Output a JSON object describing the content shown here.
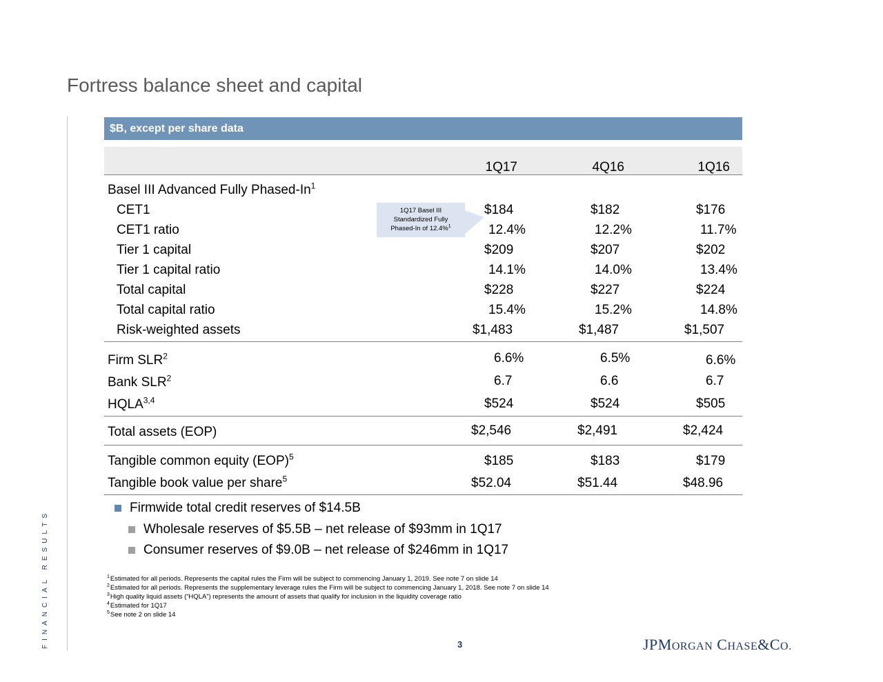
{
  "title": "Fortress balance sheet and capital",
  "side_label": "FINANCIAL RESULTS",
  "units": "$B, except per share data",
  "columns": [
    "1Q17",
    "4Q16",
    "1Q16"
  ],
  "section_basel": {
    "label": "Basel III Advanced Fully Phased-In",
    "sup": "1"
  },
  "callout": {
    "line1": "1Q17 Basel III",
    "line2": "Standardized Fully",
    "line3": "Phased-In of 12.4%",
    "sup": "1"
  },
  "rows": [
    {
      "label": "CET1",
      "v": [
        "$184",
        "$182",
        "$176"
      ]
    },
    {
      "label": "CET1 ratio",
      "v": [
        "12.4%",
        "12.2%",
        "11.7%"
      ]
    },
    {
      "label": "Tier 1 capital",
      "v": [
        "$209",
        "$207",
        "$202"
      ]
    },
    {
      "label": "Tier 1 capital ratio",
      "v": [
        "14.1%",
        "14.0%",
        "13.4%"
      ]
    },
    {
      "label": "Total capital",
      "v": [
        "$228",
        "$227",
        "$224"
      ]
    },
    {
      "label": "Total capital ratio",
      "v": [
        "15.4%",
        "15.2%",
        "14.8%"
      ]
    },
    {
      "label": "Risk-weighted assets",
      "v": [
        "$1,483",
        "$1,487",
        "$1,507"
      ]
    },
    {
      "label": "Firm SLR",
      "sup": "2",
      "v": [
        "6.6%",
        "6.5%",
        "6.6%"
      ]
    },
    {
      "label": "Bank SLR",
      "sup": "2",
      "v": [
        "6.7",
        "6.6",
        "6.7"
      ]
    },
    {
      "label": "HQLA",
      "sup": "3,4",
      "v": [
        "$524",
        "$524",
        "$505"
      ]
    },
    {
      "label": "Total assets (EOP)",
      "v": [
        "$2,546",
        "$2,491",
        "$2,424"
      ]
    },
    {
      "label": "Tangible common equity (EOP)",
      "sup": "5",
      "v": [
        "$185",
        "$183",
        "$179"
      ]
    },
    {
      "label": "Tangible book value per share",
      "sup": "5",
      "v": [
        "$52.04",
        "$51.44",
        "$48.96"
      ]
    }
  ],
  "bullets": {
    "main": "Firmwide total credit reserves of $14.5B",
    "sub1": "Wholesale reserves of $5.5B – net release of $93mm in 1Q17",
    "sub2": "Consumer reserves of $9.0B – net release of $246mm in 1Q17"
  },
  "footnotes": [
    {
      "n": "1",
      "text": "Estimated for all periods. Represents the capital rules the Firm will be subject to commencing January 1, 2019. See note 7 on slide 14"
    },
    {
      "n": "2",
      "text": "Estimated for all periods. Represents the supplementary leverage rules the Firm will be subject to commencing January 1, 2018. See note 7 on slide 14"
    },
    {
      "n": "3",
      "text": "High quality liquid assets (“HQLA”) represents the amount of assets that qualify for inclusion in the liquidity coverage ratio"
    },
    {
      "n": "4",
      "text": "Estimated for 1Q17"
    },
    {
      "n": "5",
      "text": "See note 2 on slide 14"
    }
  ],
  "page_number": "3",
  "logo": {
    "jp": "JP",
    "m": "M",
    "organ": "ORGAN",
    "c": "C",
    "hase": "HASE",
    "amp": "&",
    "co": "C",
    "o": "O."
  }
}
